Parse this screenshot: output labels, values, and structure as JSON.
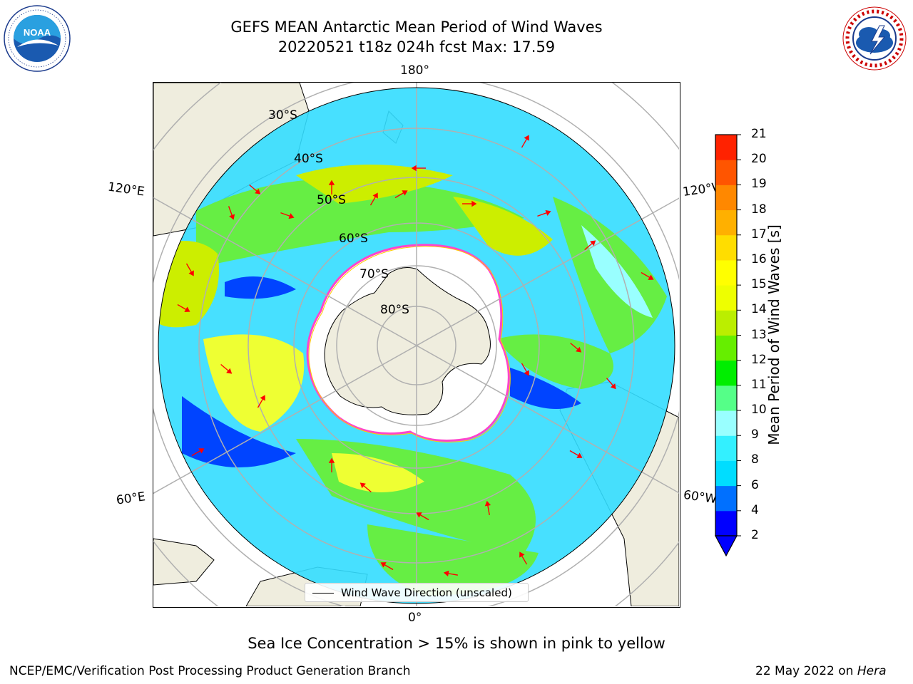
{
  "title": {
    "line1": "GEFS MEAN Antarctic Mean Period of Wind Waves",
    "line2": "20220521 t18z 024h fcst   Max: 17.59"
  },
  "logos": {
    "left": "NOAA",
    "left_ring_text": "NATIONAL OCEANIC AND ATMOSPHERIC ADMINISTRATION · U.S. DEPARTMENT OF COMMERCE",
    "right_ring_text": "NATIONAL WEATHER SERVICE"
  },
  "map": {
    "longitude_labels": {
      "top": "180°",
      "bottom": "0°",
      "upper_left": "120°E",
      "upper_right": "120°W",
      "lower_left": "60°E",
      "lower_right": "60°W"
    },
    "latitude_labels": [
      "30°S",
      "40°S",
      "50°S",
      "60°S",
      "70°S",
      "80°S"
    ],
    "legend": "Wind Wave Direction (unscaled)",
    "colors": {
      "land": "#efedde",
      "ice_edge_pink": "#ff44cc",
      "ice_edge_yellow": "#ffcc00",
      "arrow": "#ff0000",
      "graticule": "#b0b0b0"
    }
  },
  "colorbar": {
    "title": "Mean Period of Wind Waves [s]",
    "ticks": [
      "2",
      "4",
      "6",
      "8",
      "9",
      "10",
      "11",
      "12",
      "13",
      "14",
      "15",
      "16",
      "17",
      "18",
      "19",
      "20",
      "21"
    ],
    "colors": [
      "#0000ff",
      "#0070ff",
      "#00ddff",
      "#33f0ff",
      "#99ffff",
      "#55ff88",
      "#00ee00",
      "#66ee00",
      "#bbee00",
      "#eeff00",
      "#ffff00",
      "#ffdd00",
      "#ffb000",
      "#ff8800",
      "#ff5500",
      "#ff2200",
      "#ff0000"
    ]
  },
  "subtitle": "Sea Ice Concentration > 15% is shown in pink to yellow",
  "footer": {
    "credit": "NCEP/EMC/Verification Post Processing Product Generation Branch",
    "date": "22 May 2022 on ",
    "machine": "Hera"
  }
}
